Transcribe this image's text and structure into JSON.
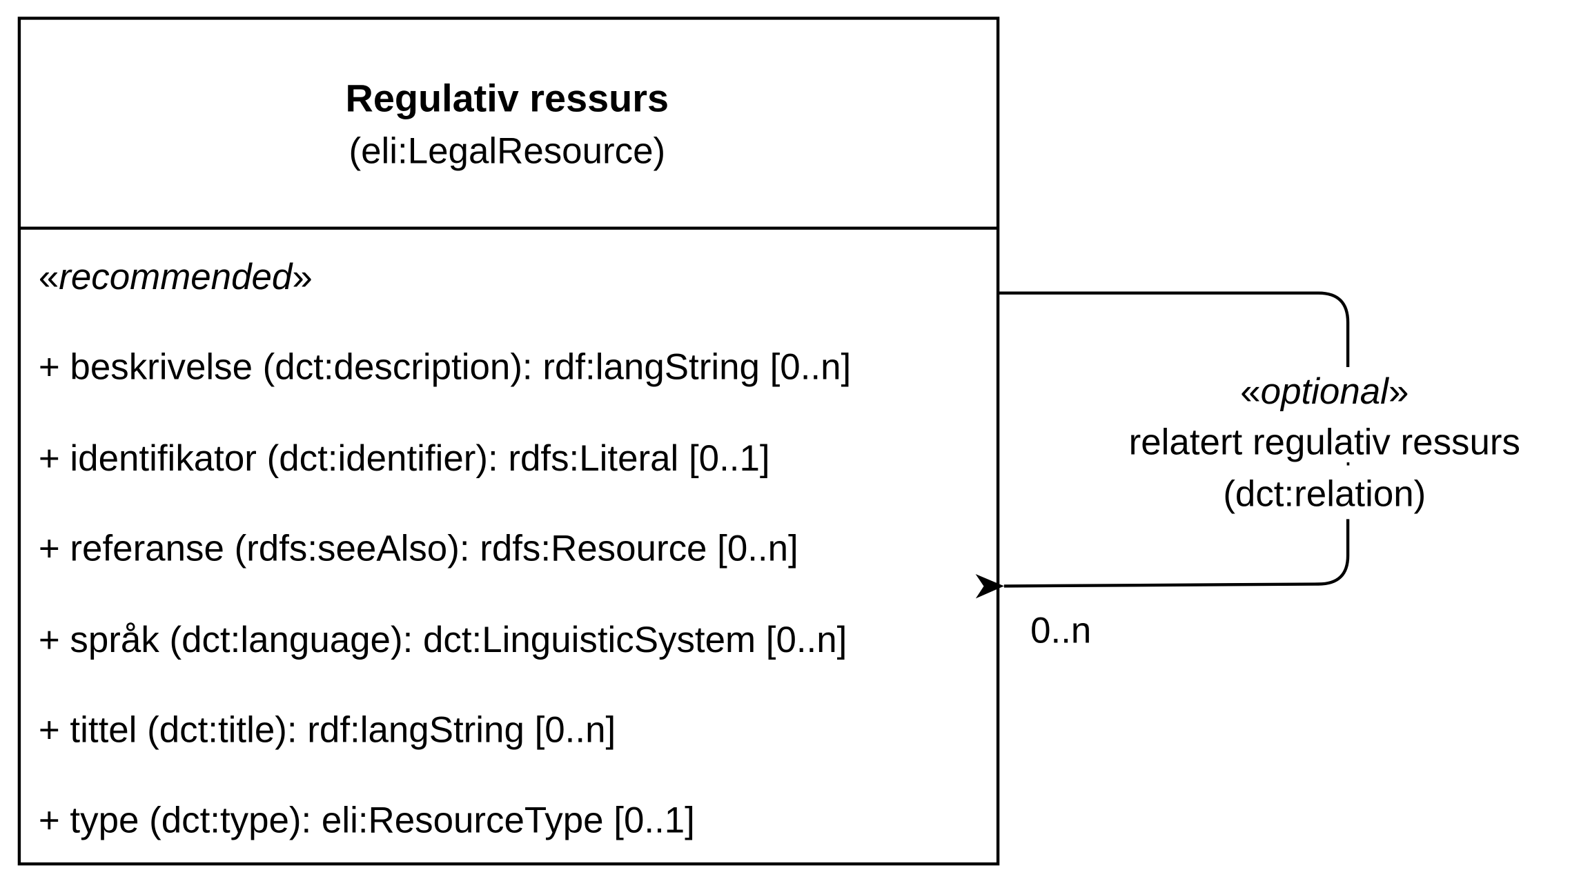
{
  "class": {
    "name": "Regulativ ressurs",
    "uri": "(eli:LegalResource)",
    "stereotype_open": "«",
    "stereotype": "recommended",
    "stereotype_close": "»",
    "attributes": [
      "+ beskrivelse (dct:description): rdf:langString [0..n]",
      "+ identifikator (dct:identifier): rdfs:Literal [0..1]",
      "+ referanse (rdfs:seeAlso): rdfs:Resource [0..n]",
      "+ språk (dct:language): dct:LinguisticSystem [0..n]",
      "+ tittel (dct:title): rdf:langString [0..n]",
      "+ type (dct:type): eli:ResourceType [0..1]"
    ]
  },
  "relation": {
    "stereotype_open": "«",
    "stereotype": "optional",
    "stereotype_close": "»",
    "label": "relatert regulativ ressurs",
    "property": "(dct:relation)",
    "multiplicity": "0..n"
  }
}
